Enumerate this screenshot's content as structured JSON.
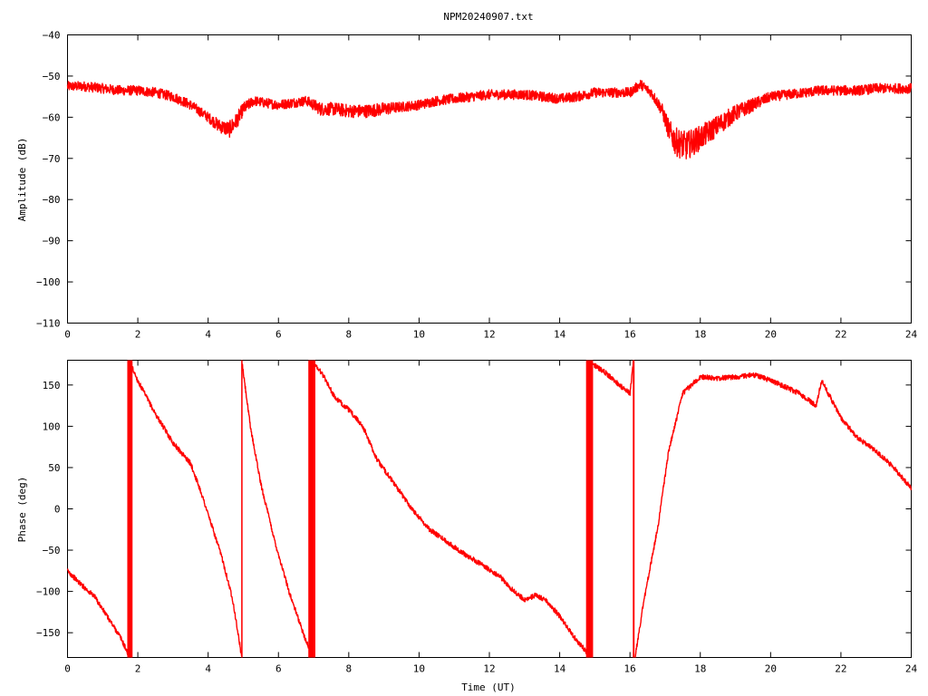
{
  "title": "NPM20240907.txt",
  "line_color": "#ff0000",
  "chart_data": [
    {
      "type": "line",
      "title": "NPM20240907.txt",
      "xlabel": "",
      "ylabel": "Amplitude (dB)",
      "xlim": [
        0,
        24
      ],
      "ylim": [
        -110,
        -40
      ],
      "xticks": [
        0,
        2,
        4,
        6,
        8,
        10,
        12,
        14,
        16,
        18,
        20,
        22,
        24
      ],
      "yticks": [
        -110,
        -100,
        -90,
        -80,
        -70,
        -60,
        -50,
        -40
      ],
      "grid": false,
      "series": [
        {
          "x": [
            0,
            0.5,
            1,
            1.5,
            2,
            2.5,
            3,
            3.5,
            4,
            4.3,
            4.6,
            4.8,
            5.0,
            5.3,
            5.6,
            6.0,
            6.4,
            6.8,
            7.2,
            7.6,
            8.0,
            8.5,
            9.0,
            9.5,
            10.0,
            10.5,
            11.0,
            11.5,
            12.0,
            12.5,
            13.0,
            13.5,
            14.0,
            14.5,
            15.0,
            15.5,
            16.0,
            16.3,
            16.6,
            16.9,
            17.1,
            17.3,
            17.6,
            18.0,
            18.5,
            19.0,
            19.5,
            20.0,
            20.5,
            21.0,
            21.4,
            21.8,
            22.5,
            23.0,
            23.5,
            24.0
          ],
          "y": [
            -52.5,
            -52.5,
            -53,
            -53.5,
            -53.5,
            -54,
            -55,
            -57,
            -60,
            -62,
            -63,
            -61,
            -58,
            -56,
            -56.5,
            -57,
            -56.5,
            -56,
            -58,
            -58,
            -58.5,
            -58.5,
            -58,
            -57.5,
            -57,
            -56,
            -55.5,
            -55,
            -54.5,
            -54.5,
            -54.5,
            -55,
            -55.5,
            -55,
            -54,
            -54,
            -54,
            -52,
            -54,
            -58,
            -63,
            -66,
            -67,
            -65,
            -62,
            -59,
            -57,
            -55,
            -54.5,
            -54,
            -53.5,
            -53.5,
            -53.5,
            -53,
            -53,
            -53
          ],
          "band": [
            1.2,
            1.2,
            1.2,
            1.2,
            1.2,
            1.2,
            1.2,
            1.2,
            1.2,
            1.6,
            2,
            2,
            1.6,
            1.2,
            1.2,
            1.2,
            1.2,
            1.2,
            1.6,
            1.6,
            1.6,
            1.6,
            1.6,
            1.2,
            1.2,
            1.2,
            1.2,
            1.2,
            1.2,
            1.2,
            1.2,
            1.2,
            1.2,
            1.2,
            1.2,
            1.2,
            1.2,
            1.2,
            1.2,
            1.6,
            2.5,
            3.5,
            3.5,
            3,
            2.5,
            2,
            1.6,
            1.2,
            1.2,
            1.2,
            1.2,
            1.2,
            1.2,
            1.2,
            1.2,
            1.2
          ]
        }
      ]
    },
    {
      "type": "line",
      "title": "",
      "xlabel": "Time (UT)",
      "ylabel": "Phase (deg)",
      "xlim": [
        0,
        24
      ],
      "ylim": [
        -180,
        180
      ],
      "xticks": [
        0,
        2,
        4,
        6,
        8,
        10,
        12,
        14,
        16,
        18,
        20,
        22,
        24
      ],
      "yticks": [
        -150,
        -100,
        -50,
        0,
        50,
        100,
        150
      ],
      "grid": false,
      "series": [
        {
          "segments": [
            {
              "x": [
                0,
                0.3,
                0.6,
                0.75,
                0.9,
                1.2,
                1.5,
                1.75
              ],
              "y": [
                -75,
                -88,
                -100,
                -105,
                -115,
                -135,
                -155,
                -178
              ]
            },
            {
              "x": [
                1.8,
                2.0,
                2.5,
                3.0,
                3.5,
                3.8,
                4.1,
                4.4,
                4.7,
                4.95
              ],
              "y": [
                175,
                155,
                115,
                80,
                55,
                20,
                -20,
                -60,
                -110,
                -178
              ]
            },
            {
              "x": [
                4.97,
                5.2,
                5.5,
                5.9,
                6.3,
                6.7,
                6.95
              ],
              "y": [
                175,
                100,
                30,
                -40,
                -100,
                -150,
                -178
              ]
            },
            {
              "x": [
                7.05,
                7.3,
                7.6,
                8.0,
                8.4,
                8.8,
                9.3,
                9.8,
                10.3,
                10.8,
                11.3,
                11.8,
                12.3,
                12.7,
                13.0,
                13.3,
                13.6,
                14.0,
                14.4,
                14.8
              ],
              "y": [
                175,
                160,
                135,
                120,
                100,
                60,
                30,
                0,
                -25,
                -40,
                -55,
                -68,
                -82,
                -100,
                -110,
                -105,
                -110,
                -130,
                -155,
                -175
              ]
            },
            {
              "x": [
                14.95,
                15.3,
                15.7,
                16.0,
                16.1
              ],
              "y": [
                175,
                165,
                150,
                140,
                180
              ]
            },
            {
              "x": [
                16.15,
                16.4,
                16.8,
                17.1,
                17.5,
                18.0,
                18.5,
                19.0,
                19.6,
                20.2,
                20.8,
                21.3,
                21.45,
                21.7,
                22.0,
                22.5,
                23.0,
                23.5,
                24.0
              ],
              "y": [
                -178,
                -110,
                -20,
                70,
                140,
                160,
                158,
                160,
                162,
                152,
                140,
                125,
                155,
                135,
                110,
                85,
                70,
                50,
                25
              ]
            }
          ],
          "vertical_fills": [
            [
              1.7,
              1.85
            ],
            [
              6.85,
              7.05
            ],
            [
              14.75,
              14.95
            ],
            [
              4.94,
              4.98
            ],
            [
              16.08,
              16.13
            ]
          ],
          "band": 3
        }
      ]
    }
  ]
}
